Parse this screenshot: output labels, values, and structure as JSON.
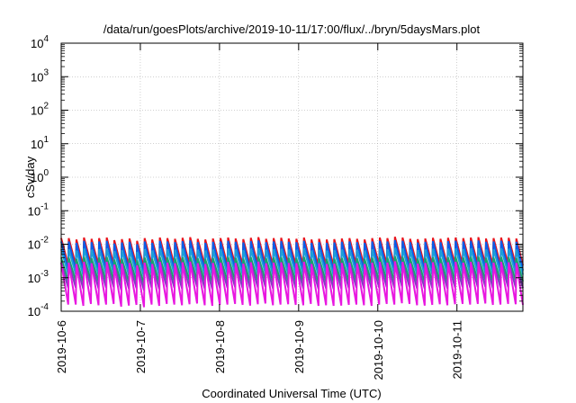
{
  "chart_data": {
    "type": "line",
    "title": "/data/run/goesPlots/archive/2019-10-11/17:00/flux/../bryn/5daysMars.plot",
    "xlabel": "Coordinated Universal Time (UTC)",
    "ylabel": "cSv/day",
    "yscale": "log",
    "ylim": [
      0.0001,
      10000
    ],
    "xlim": [
      "2019-10-06 00:00",
      "2019-10-11 20:00"
    ],
    "grid": true,
    "legend": "none",
    "x_ticks": [
      "2019-10-6",
      "2019-10-7",
      "2019-10-8",
      "2019-10-9",
      "2019-10-10",
      "2019-10-11"
    ],
    "y_ticks": [
      {
        "base": "10",
        "exp": "-4"
      },
      {
        "base": "10",
        "exp": "-3"
      },
      {
        "base": "10",
        "exp": "-2"
      },
      {
        "base": "10",
        "exp": "-1"
      },
      {
        "base": "10",
        "exp": "0"
      },
      {
        "base": "10",
        "exp": "1"
      },
      {
        "base": "10",
        "exp": "2"
      },
      {
        "base": "10",
        "exp": "3"
      },
      {
        "base": "10",
        "exp": "4"
      }
    ],
    "sawtooth_period_hours": 2.3,
    "series": [
      {
        "color": "#e8131c",
        "peak_log": [
          -1.82,
          -1.82,
          -1.86,
          -1.8,
          -1.84,
          -1.82,
          -1.8,
          -1.88,
          -1.85,
          -1.83,
          -1.9,
          -1.82,
          -1.86,
          -1.8,
          -1.82,
          -1.84,
          -1.81,
          -1.79,
          -1.84,
          -1.86,
          -1.83,
          -1.82,
          -1.8,
          -1.83,
          -1.85,
          -1.81,
          -1.79,
          -1.84,
          -1.82,
          -1.81,
          -1.83,
          -1.84,
          -1.8,
          -1.86,
          -1.84,
          -1.86,
          -1.85,
          -1.83,
          -1.82,
          -1.84,
          -1.86,
          -1.82,
          -1.8,
          -1.82,
          -1.78,
          -1.8,
          -1.84,
          -1.85,
          -1.83,
          -1.81,
          -1.84,
          -1.81,
          -1.8,
          -1.82,
          -1.8,
          -1.79,
          -1.83,
          -1.82,
          -1.8,
          -1.81,
          -1.83
        ],
        "drop_log": 0.8
      },
      {
        "color": "#0a5ee8",
        "peak_log": [
          -1.92,
          -1.92,
          -1.96,
          -1.9,
          -1.94,
          -1.92,
          -1.9,
          -1.98,
          -1.95,
          -1.93,
          -2.0,
          -1.92,
          -1.96,
          -1.9,
          -1.92,
          -1.94,
          -1.91,
          -1.89,
          -1.94,
          -1.96,
          -1.93,
          -1.92,
          -1.9,
          -1.93,
          -1.95,
          -1.91,
          -1.89,
          -1.94,
          -1.92,
          -1.91,
          -1.93,
          -1.94,
          -1.9,
          -1.96,
          -1.94,
          -1.96,
          -1.95,
          -1.93,
          -1.92,
          -1.94,
          -1.96,
          -1.92,
          -1.9,
          -1.92,
          -1.88,
          -1.9,
          -1.94,
          -1.95,
          -1.93,
          -1.91,
          -1.94,
          -1.91,
          -1.9,
          -1.92,
          -1.9,
          -1.89,
          -1.93,
          -1.92,
          -1.9,
          -1.91,
          -1.93
        ],
        "drop_log": 0.85
      },
      {
        "color": "#1b9fd8",
        "peak_log": [
          -2.15,
          -2.15,
          -2.19,
          -2.13,
          -2.17,
          -2.15,
          -2.13,
          -2.21,
          -2.18,
          -2.16,
          -2.23,
          -2.15,
          -2.19,
          -2.13,
          -2.15,
          -2.17,
          -2.14,
          -2.12,
          -2.17,
          -2.19,
          -2.16,
          -2.15,
          -2.13,
          -2.16,
          -2.18,
          -2.14,
          -2.12,
          -2.17,
          -2.15,
          -2.14,
          -2.16,
          -2.17,
          -2.13,
          -2.19,
          -2.17,
          -2.19,
          -2.18,
          -2.16,
          -2.15,
          -2.17,
          -2.19,
          -2.15,
          -2.13,
          -2.15,
          -2.11,
          -2.13,
          -2.17,
          -2.18,
          -2.16,
          -2.14,
          -2.17,
          -2.14,
          -2.13,
          -2.15,
          -2.13,
          -2.12,
          -2.16,
          -2.15,
          -2.13,
          -2.14,
          -2.16
        ],
        "drop_log": 0.75
      },
      {
        "color": "#1aa36b",
        "peak_log": [
          -2.4,
          -2.4,
          -2.44,
          -2.38,
          -2.42,
          -2.4,
          -2.38,
          -2.46,
          -2.43,
          -2.41,
          -2.48,
          -2.4,
          -2.44,
          -2.38,
          -2.4,
          -2.42,
          -2.39,
          -2.37,
          -2.42,
          -2.44,
          -2.41,
          -2.4,
          -2.38,
          -2.41,
          -2.43,
          -2.39,
          -2.37,
          -2.42,
          -2.4,
          -2.39,
          -2.41,
          -2.42,
          -2.38,
          -2.44,
          -2.42,
          -2.44,
          -2.43,
          -2.41,
          -2.4,
          -2.42,
          -2.44,
          -2.4,
          -2.38,
          -2.4,
          -2.36,
          -2.38,
          -2.42,
          -2.43,
          -2.41,
          -2.39,
          -2.42,
          -2.39,
          -2.38,
          -2.4,
          -2.38,
          -2.37,
          -2.41,
          -2.4,
          -2.38,
          -2.39,
          -2.41
        ],
        "drop_log": 0.7
      },
      {
        "color": "#7b3fbf",
        "peak_log": [
          -2.55,
          -2.55,
          -2.59,
          -2.53,
          -2.57,
          -2.55,
          -2.53,
          -2.61,
          -2.58,
          -2.56,
          -2.63,
          -2.55,
          -2.59,
          -2.53,
          -2.55,
          -2.57,
          -2.54,
          -2.52,
          -2.57,
          -2.59,
          -2.56,
          -2.55,
          -2.53,
          -2.56,
          -2.58,
          -2.54,
          -2.52,
          -2.57,
          -2.55,
          -2.54,
          -2.56,
          -2.57,
          -2.53,
          -2.59,
          -2.57,
          -2.59,
          -2.58,
          -2.56,
          -2.55,
          -2.57,
          -2.59,
          -2.55,
          -2.53,
          -2.55,
          -2.51,
          -2.53,
          -2.57,
          -2.58,
          -2.56,
          -2.54,
          -2.57,
          -2.54,
          -2.53,
          -2.55,
          -2.53,
          -2.52,
          -2.56,
          -2.55,
          -2.53,
          -2.54,
          -2.56
        ],
        "drop_log": 0.75
      },
      {
        "color": "#e817e0",
        "peak_log": [
          -2.55,
          -2.55,
          -2.59,
          -2.53,
          -2.57,
          -2.55,
          -2.53,
          -2.61,
          -2.58,
          -2.56,
          -2.63,
          -2.55,
          -2.59,
          -2.53,
          -2.55,
          -2.57,
          -2.54,
          -2.52,
          -2.57,
          -2.59,
          -2.56,
          -2.55,
          -2.53,
          -2.56,
          -2.58,
          -2.54,
          -2.52,
          -2.57,
          -2.55,
          -2.54,
          -2.56,
          -2.57,
          -2.53,
          -2.59,
          -2.57,
          -2.59,
          -2.58,
          -2.56,
          -2.55,
          -2.57,
          -2.59,
          -2.55,
          -2.53,
          -2.55,
          -2.51,
          -2.53,
          -2.57,
          -2.58,
          -2.56,
          -2.54,
          -2.57,
          -2.54,
          -2.53,
          -2.55,
          -2.53,
          -2.52,
          -2.56,
          -2.55,
          -2.53,
          -2.54,
          -2.56
        ],
        "drop_log": 1.25
      }
    ]
  }
}
